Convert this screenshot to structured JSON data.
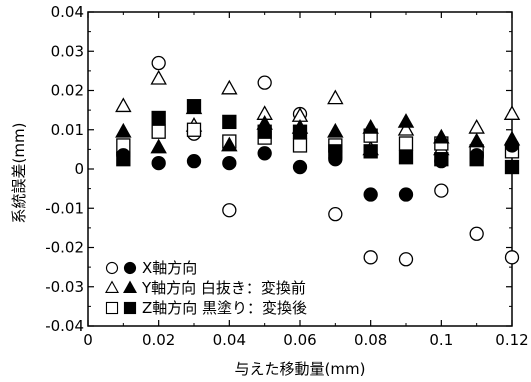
{
  "chart_data": {
    "type": "scatter",
    "title": "",
    "xlabel": "与えた移動量(mm)",
    "ylabel": "系統誤差(mm)",
    "xlim": [
      0,
      0.12
    ],
    "ylim": [
      -0.04,
      0.04
    ],
    "x_ticks": [
      0,
      0.02,
      0.04,
      0.06,
      0.08,
      0.1,
      0.12
    ],
    "x_tick_labels": [
      "0",
      "0.02",
      "0.04",
      "0.06",
      "0.08",
      "0.1",
      "0.12"
    ],
    "y_ticks": [
      -0.04,
      -0.03,
      -0.02,
      -0.01,
      0,
      0.01,
      0.02,
      0.03,
      0.04
    ],
    "y_tick_labels": [
      "-0.04",
      "-0.03",
      "-0.02",
      "-0.01",
      "0",
      "0.01",
      "0.02",
      "0.03",
      "0.04"
    ],
    "grid": false,
    "legend_position": "bottom-left",
    "legend_lines": [
      {
        "symbols": [
          "circle-open",
          "circle-filled"
        ],
        "text": "X軸方向"
      },
      {
        "symbols": [
          "triangle-open",
          "triangle-filled"
        ],
        "text": "Y軸方向 白抜き：変換前"
      },
      {
        "symbols": [
          "square-open",
          "square-filled"
        ],
        "text": "Z軸方向 黒塗り：変換後"
      }
    ],
    "x": [
      0.01,
      0.02,
      0.03,
      0.04,
      0.05,
      0.06,
      0.07,
      0.08,
      0.09,
      0.1,
      0.11,
      0.12
    ],
    "series": [
      {
        "marker": "circle-open",
        "values": [
          0.004,
          0.027,
          0.009,
          -0.0105,
          0.022,
          0.014,
          -0.0115,
          -0.0225,
          -0.023,
          -0.0055,
          -0.0165,
          -0.0225
        ]
      },
      {
        "marker": "circle-filled",
        "values": [
          0.0035,
          0.0015,
          0.002,
          0.0015,
          0.004,
          0.0005,
          0.0025,
          -0.0065,
          -0.0065,
          0.002,
          0.0035,
          0.006
        ]
      },
      {
        "marker": "triangle-open",
        "values": [
          0.016,
          0.023,
          0.011,
          0.0205,
          0.014,
          0.0135,
          0.018,
          0.005,
          0.01,
          0.005,
          0.0105,
          0.014
        ]
      },
      {
        "marker": "triangle-filled",
        "values": [
          0.0095,
          0.0055,
          0.0155,
          0.006,
          0.0115,
          0.0105,
          0.0095,
          0.0105,
          0.012,
          0.008,
          0.007,
          0.0075
        ]
      },
      {
        "marker": "square-open",
        "values": [
          0.006,
          0.0095,
          0.01,
          0.007,
          0.008,
          0.006,
          0.006,
          0.0085,
          0.0065,
          0.0065,
          0.0045,
          0.0045
        ]
      },
      {
        "marker": "square-filled",
        "values": [
          0.0025,
          0.013,
          0.016,
          0.012,
          0.0095,
          0.0095,
          0.0045,
          0.0045,
          0.003,
          0.0025,
          0.0025,
          0.0005
        ]
      }
    ]
  }
}
